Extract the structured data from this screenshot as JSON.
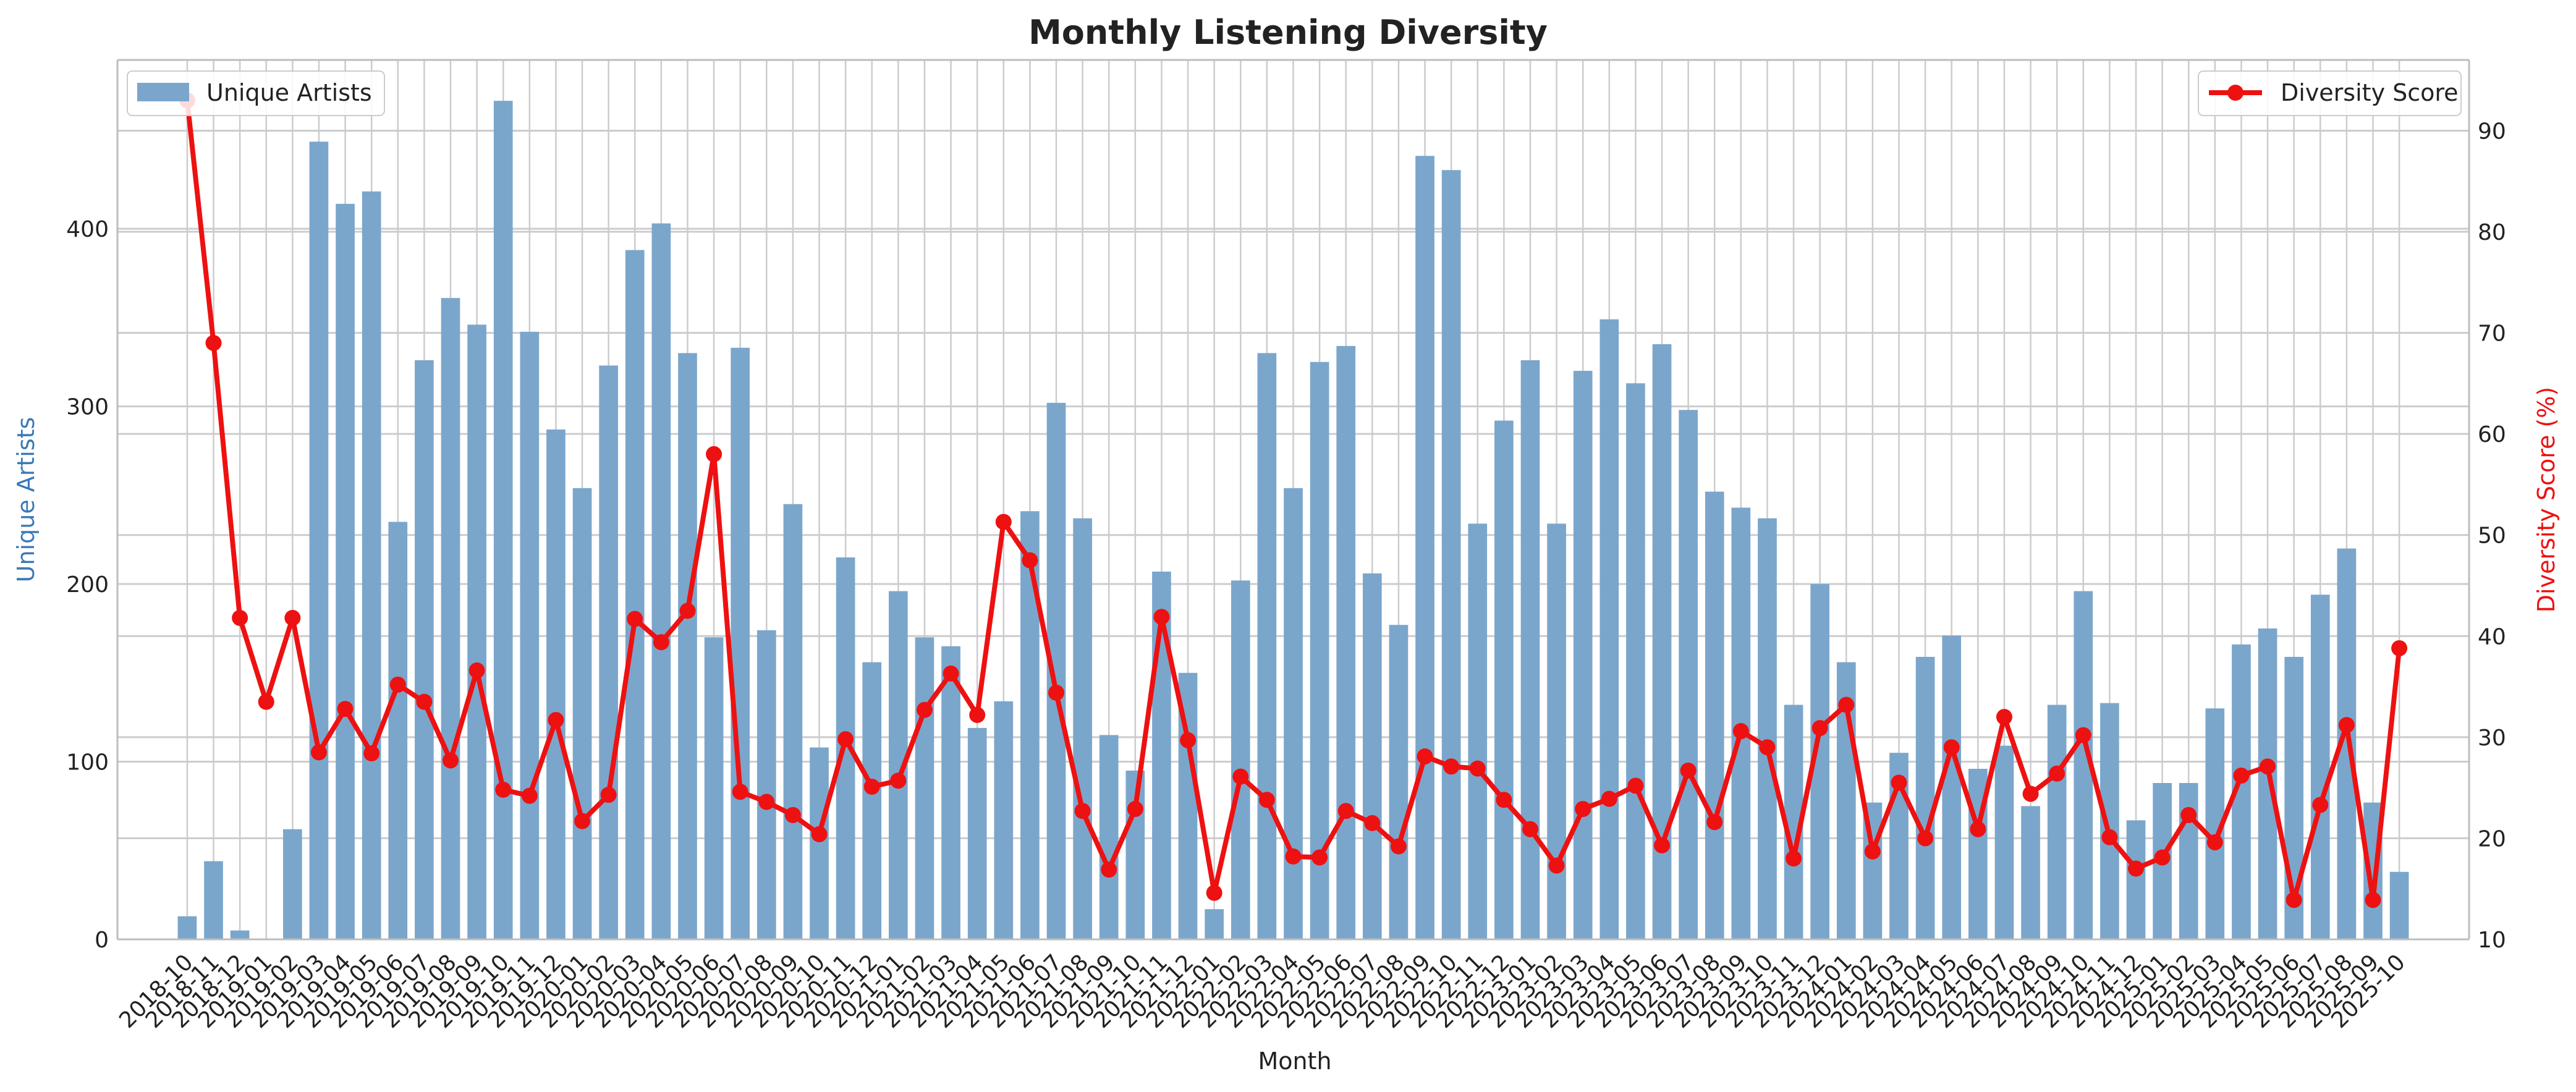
{
  "chart_data": {
    "type": "bar",
    "title": "Monthly Listening Diversity",
    "xlabel": "Month",
    "ylabel": "Unique Artists",
    "y2label": "Diversity Score (%)",
    "ylim": [
      0,
      495
    ],
    "y2lim": [
      10,
      97
    ],
    "yticks": [
      0,
      100,
      200,
      300,
      400
    ],
    "y2ticks": [
      10,
      20,
      30,
      40,
      50,
      60,
      70,
      80,
      90
    ],
    "grid": true,
    "categories": [
      "2018-10",
      "2018-11",
      "2018-12",
      "2019-01",
      "2019-02",
      "2019-03",
      "2019-04",
      "2019-05",
      "2019-06",
      "2019-07",
      "2019-08",
      "2019-09",
      "2019-10",
      "2019-11",
      "2019-12",
      "2020-01",
      "2020-02",
      "2020-03",
      "2020-04",
      "2020-05",
      "2020-06",
      "2020-07",
      "2020-08",
      "2020-09",
      "2020-10",
      "2020-11",
      "2020-12",
      "2021-01",
      "2021-02",
      "2021-03",
      "2021-04",
      "2021-05",
      "2021-06",
      "2021-07",
      "2021-08",
      "2021-09",
      "2021-10",
      "2021-11",
      "2021-12",
      "2022-01",
      "2022-02",
      "2022-03",
      "2022-04",
      "2022-05",
      "2022-06",
      "2022-07",
      "2022-08",
      "2022-09",
      "2022-10",
      "2022-11",
      "2022-12",
      "2023-01",
      "2023-02",
      "2023-03",
      "2023-04",
      "2023-05",
      "2023-06",
      "2023-07",
      "2023-08",
      "2023-09",
      "2023-10",
      "2023-11",
      "2023-12",
      "2024-01",
      "2024-02",
      "2024-03",
      "2024-04",
      "2024-05",
      "2024-06",
      "2024-07",
      "2024-08",
      "2024-09",
      "2024-10",
      "2024-11",
      "2024-12",
      "2025-01",
      "2025-02",
      "2025-03",
      "2025-04",
      "2025-05",
      "2025-06",
      "2025-07",
      "2025-08",
      "2025-09",
      "2025-10"
    ],
    "series": [
      {
        "name": "Unique Artists",
        "type": "bar",
        "axis": "left",
        "color": "#7ba6cc",
        "values": [
          13,
          44,
          5,
          0,
          62,
          449,
          414,
          421,
          235,
          326,
          361,
          346,
          472,
          342,
          287,
          254,
          323,
          388,
          403,
          330,
          170,
          333,
          174,
          245,
          108,
          215,
          156,
          196,
          170,
          165,
          119,
          134,
          241,
          302,
          237,
          115,
          95,
          207,
          150,
          17,
          202,
          330,
          254,
          325,
          334,
          206,
          177,
          441,
          433,
          234,
          292,
          326,
          234,
          320,
          349,
          313,
          335,
          298,
          252,
          243,
          237,
          132,
          200,
          156,
          77,
          105,
          159,
          171,
          96,
          109,
          75,
          132,
          196,
          133,
          67,
          88,
          88,
          130,
          166,
          175,
          159,
          194,
          220,
          77,
          38
        ]
      },
      {
        "name": "Diversity Score",
        "type": "line",
        "axis": "right",
        "color": "#ee1111",
        "values": [
          93,
          69,
          41.8,
          33.5,
          41.8,
          28.5,
          32.8,
          28.4,
          35.2,
          33.5,
          27.7,
          36.6,
          24.8,
          24.2,
          31.7,
          21.7,
          24.3,
          41.7,
          39.4,
          42.5,
          58,
          24.6,
          23.6,
          22.3,
          20.4,
          29.8,
          25.1,
          25.7,
          32.7,
          36.3,
          32.2,
          51.3,
          47.5,
          34.4,
          22.7,
          16.9,
          22.9,
          41.9,
          29.7,
          14.6,
          26.1,
          23.8,
          18.2,
          18.1,
          22.7,
          21.5,
          19.2,
          28.1,
          27.1,
          26.9,
          23.8,
          20.9,
          17.3,
          22.9,
          23.9,
          25.2,
          19.3,
          26.7,
          21.6,
          30.6,
          29,
          18,
          30.9,
          33.2,
          18.7,
          25.5,
          20,
          29,
          20.9,
          32,
          24.4,
          26.4,
          30.2,
          20.1,
          17,
          18.1,
          22.3,
          19.6,
          26.2,
          27.1,
          13.9,
          23.3,
          31.2,
          13.9,
          38.8
        ]
      }
    ],
    "legend": [
      {
        "label": "Unique Artists",
        "placement": "top-left"
      },
      {
        "label": "Diversity Score",
        "placement": "top-right"
      }
    ],
    "colors": {
      "ylabel": "#3b7ab8",
      "y2label": "#ee1111",
      "grid": "#cccccc",
      "axis": "#bdbdbd"
    }
  }
}
